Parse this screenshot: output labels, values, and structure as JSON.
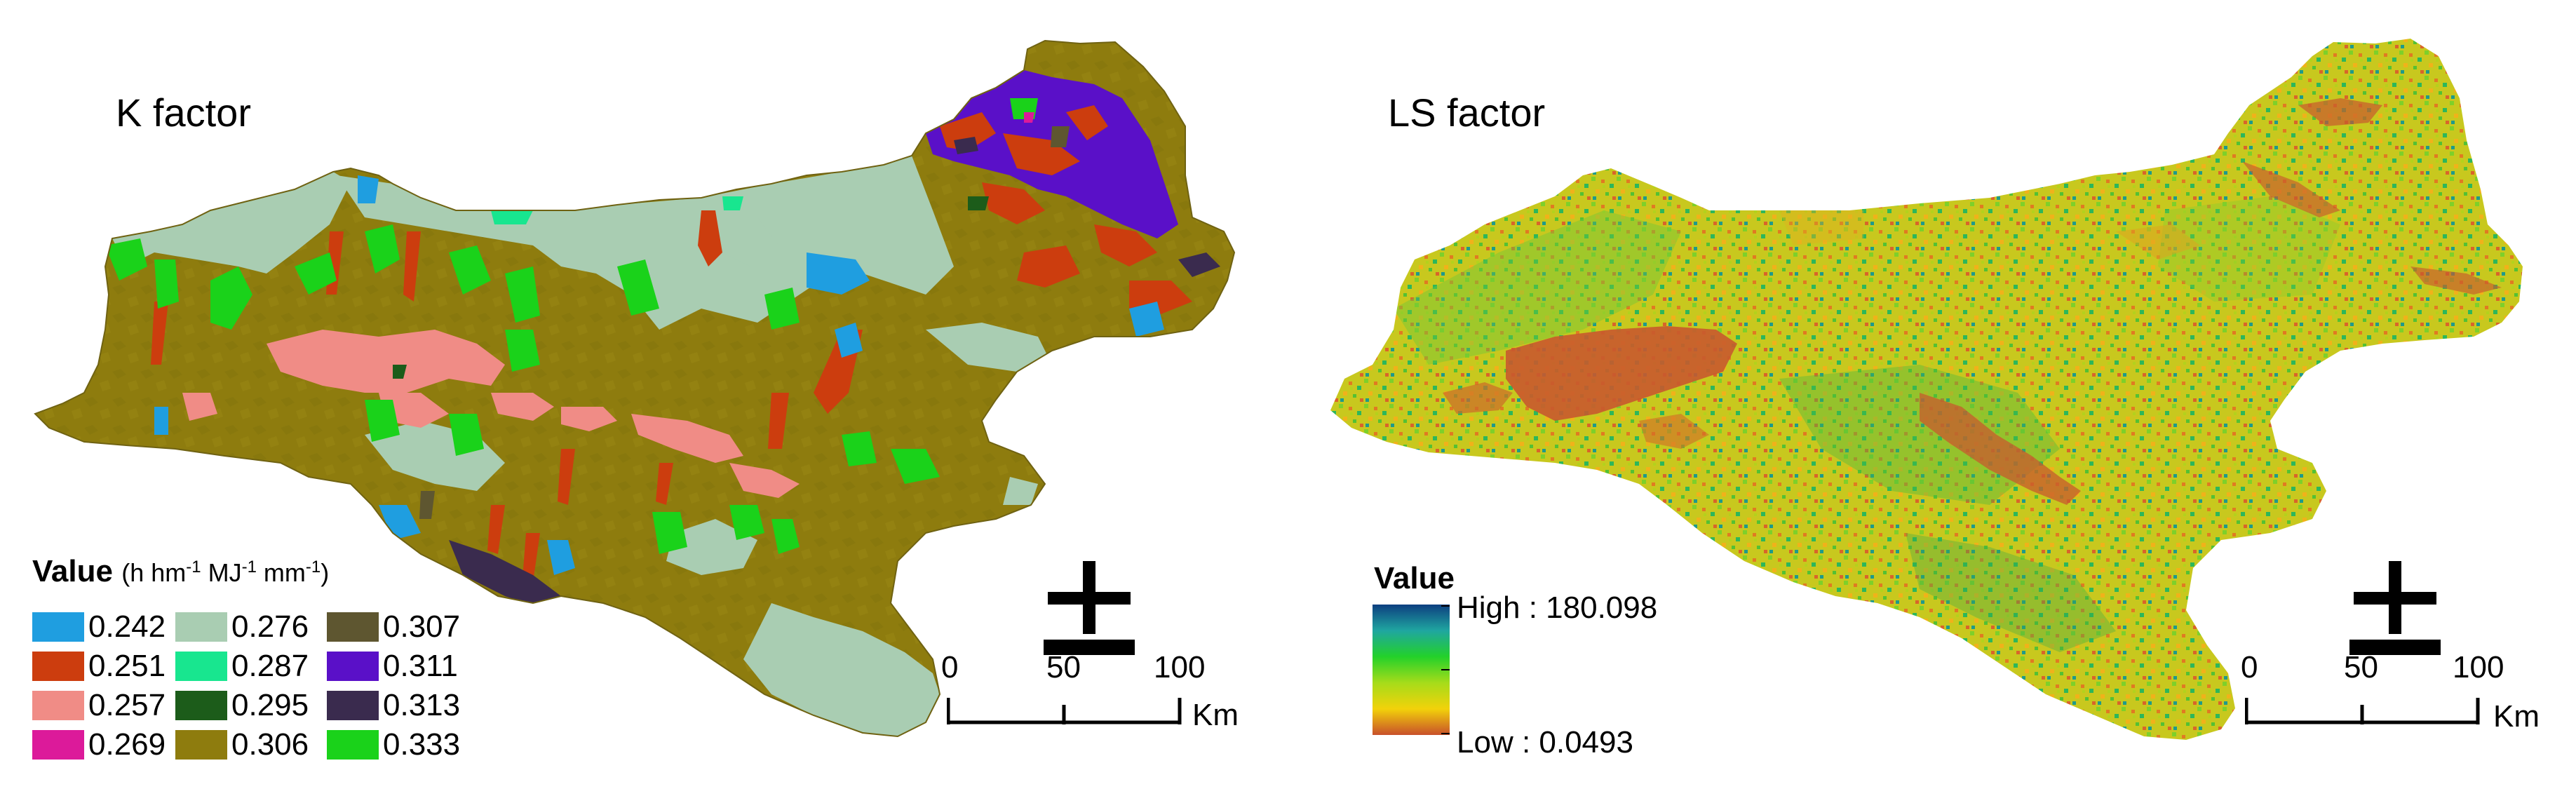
{
  "k_panel": {
    "title": "K factor",
    "legend": {
      "heading": "Value",
      "unit_prefix": "(h hm",
      "unit_sup1": "-1",
      "unit_mid1": " MJ",
      "unit_sup2": "-1",
      "unit_mid2": " mm",
      "unit_sup3": "-1",
      "unit_suffix": ")",
      "classes": [
        {
          "label": "0.242",
          "color": "#1f9ee0"
        },
        {
          "label": "0.251",
          "color": "#cc3d0e"
        },
        {
          "label": "0.257",
          "color": "#f08c86"
        },
        {
          "label": "0.269",
          "color": "#dc1a9a"
        },
        {
          "label": "0.276",
          "color": "#a9cdb2"
        },
        {
          "label": "0.287",
          "color": "#18e68f"
        },
        {
          "label": "0.295",
          "color": "#1c5c1a"
        },
        {
          "label": "0.306",
          "color": "#8e7c0e"
        },
        {
          "label": "0.307",
          "color": "#5e5630"
        },
        {
          "label": "0.311",
          "color": "#5a10c8"
        },
        {
          "label": "0.313",
          "color": "#3a2b4e"
        },
        {
          "label": "0.333",
          "color": "#1ad21a"
        }
      ]
    },
    "north_arrow_icon": "north-arrow-icon",
    "scale_bar": {
      "ticks": [
        "0",
        "50",
        "100"
      ],
      "unit": "Km"
    }
  },
  "ls_panel": {
    "title": "LS factor",
    "legend": {
      "heading": "Value",
      "high_label": "High : 180.098",
      "low_label": "Low : 0.0493",
      "ramp_colors": [
        "#0d3f80",
        "#1fa6a0",
        "#23d12a",
        "#a6dc1a",
        "#f2d20a",
        "#c8502a"
      ]
    },
    "north_arrow_icon": "north-arrow-icon",
    "scale_bar": {
      "ticks": [
        "0",
        "50",
        "100"
      ],
      "unit": "Km"
    }
  }
}
